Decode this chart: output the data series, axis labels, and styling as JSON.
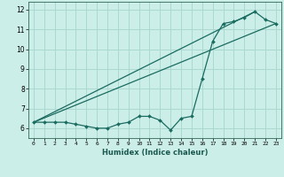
{
  "xlabel": "Humidex (Indice chaleur)",
  "xlim": [
    -0.5,
    23.5
  ],
  "ylim": [
    5.5,
    12.4
  ],
  "yticks": [
    6,
    7,
    8,
    9,
    10,
    11,
    12
  ],
  "xticks": [
    0,
    1,
    2,
    3,
    4,
    5,
    6,
    7,
    8,
    9,
    10,
    11,
    12,
    13,
    14,
    15,
    16,
    17,
    18,
    19,
    20,
    21,
    22,
    23
  ],
  "bg_color": "#cceee8",
  "grid_color": "#aad8d0",
  "line_color": "#1a6b60",
  "line1_x": [
    0,
    1,
    2,
    3,
    4,
    5,
    6,
    7,
    8,
    9,
    10,
    11,
    12,
    13,
    14,
    15,
    16,
    17,
    18,
    19,
    20,
    21,
    22,
    23
  ],
  "line1_y": [
    6.3,
    6.3,
    6.3,
    6.3,
    6.2,
    6.1,
    6.0,
    6.0,
    6.2,
    6.3,
    6.6,
    6.6,
    6.4,
    5.9,
    6.5,
    6.6,
    8.5,
    10.4,
    11.3,
    11.4,
    11.6,
    11.9,
    11.5,
    11.3
  ],
  "line2_x": [
    0,
    21
  ],
  "line2_y": [
    6.3,
    11.9
  ],
  "line3_x": [
    0,
    23
  ],
  "line3_y": [
    6.3,
    11.3
  ]
}
